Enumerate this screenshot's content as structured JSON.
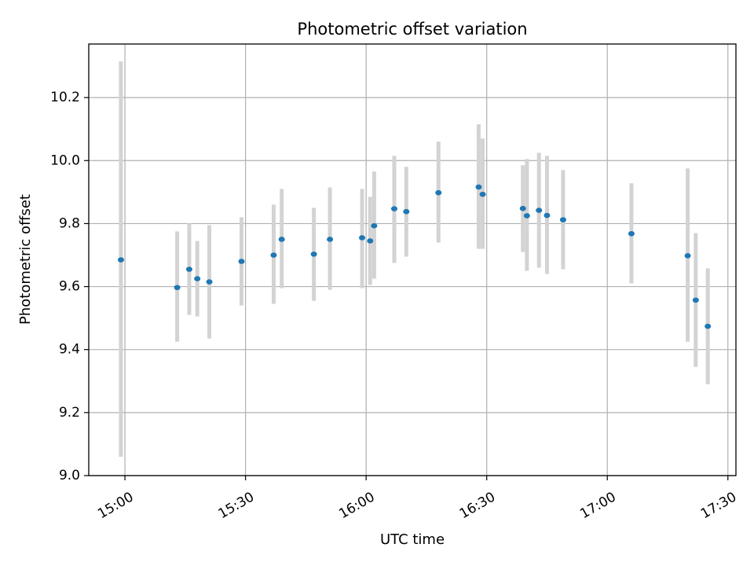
{
  "chart_data": {
    "type": "scatter",
    "title": "Photometric offset variation",
    "xlabel": "UTC time",
    "ylabel": "Photometric offset",
    "x_ticks": [
      "15:00",
      "15:30",
      "16:00",
      "16:30",
      "17:00",
      "17:30"
    ],
    "y_ticks": [
      "9.0",
      "9.2",
      "9.4",
      "9.6",
      "9.8",
      "10.0",
      "10.2"
    ],
    "xlim": [
      "14:51",
      "17:32"
    ],
    "ylim": [
      9.0,
      10.37
    ],
    "grid": true,
    "error_bar_color": "#d3d3d3",
    "point_color": "#1f77b4",
    "series": [
      {
        "points": [
          {
            "x": "14:59",
            "y": 9.685,
            "err_low": 9.06,
            "err_high": 10.315
          },
          {
            "x": "15:13",
            "y": 9.597,
            "err_low": 9.425,
            "err_high": 9.775
          },
          {
            "x": "15:16",
            "y": 9.655,
            "err_low": 9.51,
            "err_high": 9.8
          },
          {
            "x": "15:18",
            "y": 9.625,
            "err_low": 9.505,
            "err_high": 9.745
          },
          {
            "x": "15:21",
            "y": 9.615,
            "err_low": 9.435,
            "err_high": 9.795
          },
          {
            "x": "15:29",
            "y": 9.68,
            "err_low": 9.54,
            "err_high": 9.82
          },
          {
            "x": "15:37",
            "y": 9.7,
            "err_low": 9.545,
            "err_high": 9.86
          },
          {
            "x": "15:39",
            "y": 9.75,
            "err_low": 9.595,
            "err_high": 9.91
          },
          {
            "x": "15:47",
            "y": 9.703,
            "err_low": 9.555,
            "err_high": 9.85
          },
          {
            "x": "15:51",
            "y": 9.75,
            "err_low": 9.59,
            "err_high": 9.915
          },
          {
            "x": "15:59",
            "y": 9.755,
            "err_low": 9.595,
            "err_high": 9.91
          },
          {
            "x": "16:01",
            "y": 9.745,
            "err_low": 9.605,
            "err_high": 9.885
          },
          {
            "x": "16:02",
            "y": 9.793,
            "err_low": 9.625,
            "err_high": 9.965
          },
          {
            "x": "16:07",
            "y": 9.847,
            "err_low": 9.675,
            "err_high": 10.015
          },
          {
            "x": "16:10",
            "y": 9.838,
            "err_low": 9.695,
            "err_high": 9.98
          },
          {
            "x": "16:18",
            "y": 9.898,
            "err_low": 9.74,
            "err_high": 10.06
          },
          {
            "x": "16:28",
            "y": 9.916,
            "err_low": 9.72,
            "err_high": 10.115
          },
          {
            "x": "16:29",
            "y": 9.893,
            "err_low": 9.72,
            "err_high": 10.07
          },
          {
            "x": "16:39",
            "y": 9.848,
            "err_low": 9.71,
            "err_high": 9.985
          },
          {
            "x": "16:40",
            "y": 9.825,
            "err_low": 9.65,
            "err_high": 10.005
          },
          {
            "x": "16:43",
            "y": 9.842,
            "err_low": 9.66,
            "err_high": 10.025
          },
          {
            "x": "16:45",
            "y": 9.826,
            "err_low": 9.64,
            "err_high": 10.015
          },
          {
            "x": "16:49",
            "y": 9.812,
            "err_low": 9.655,
            "err_high": 9.97
          },
          {
            "x": "17:06",
            "y": 9.768,
            "err_low": 9.61,
            "err_high": 9.928
          },
          {
            "x": "17:20",
            "y": 9.698,
            "err_low": 9.425,
            "err_high": 9.975
          },
          {
            "x": "17:22",
            "y": 9.557,
            "err_low": 9.345,
            "err_high": 9.77
          },
          {
            "x": "17:25",
            "y": 9.474,
            "err_low": 9.29,
            "err_high": 9.658
          }
        ]
      }
    ]
  }
}
